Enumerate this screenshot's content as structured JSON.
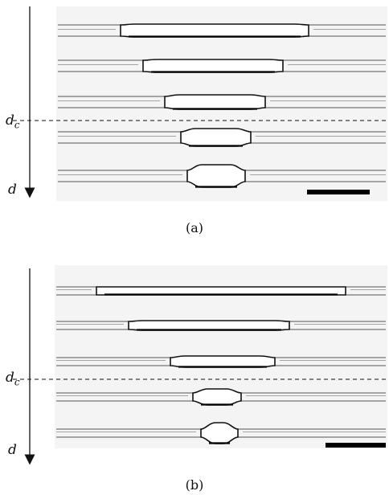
{
  "panels": [
    {
      "caption": "(a)",
      "var_dc": "d",
      "var_dc_sub": "c",
      "var_d": "d"
    },
    {
      "caption": "(b)",
      "var_dc": "d",
      "var_dc_sub": "c",
      "var_d": "d"
    }
  ],
  "colors": {
    "frame_bg": "#f4f4f4",
    "line": "#111111",
    "thin_line": "#777777"
  }
}
